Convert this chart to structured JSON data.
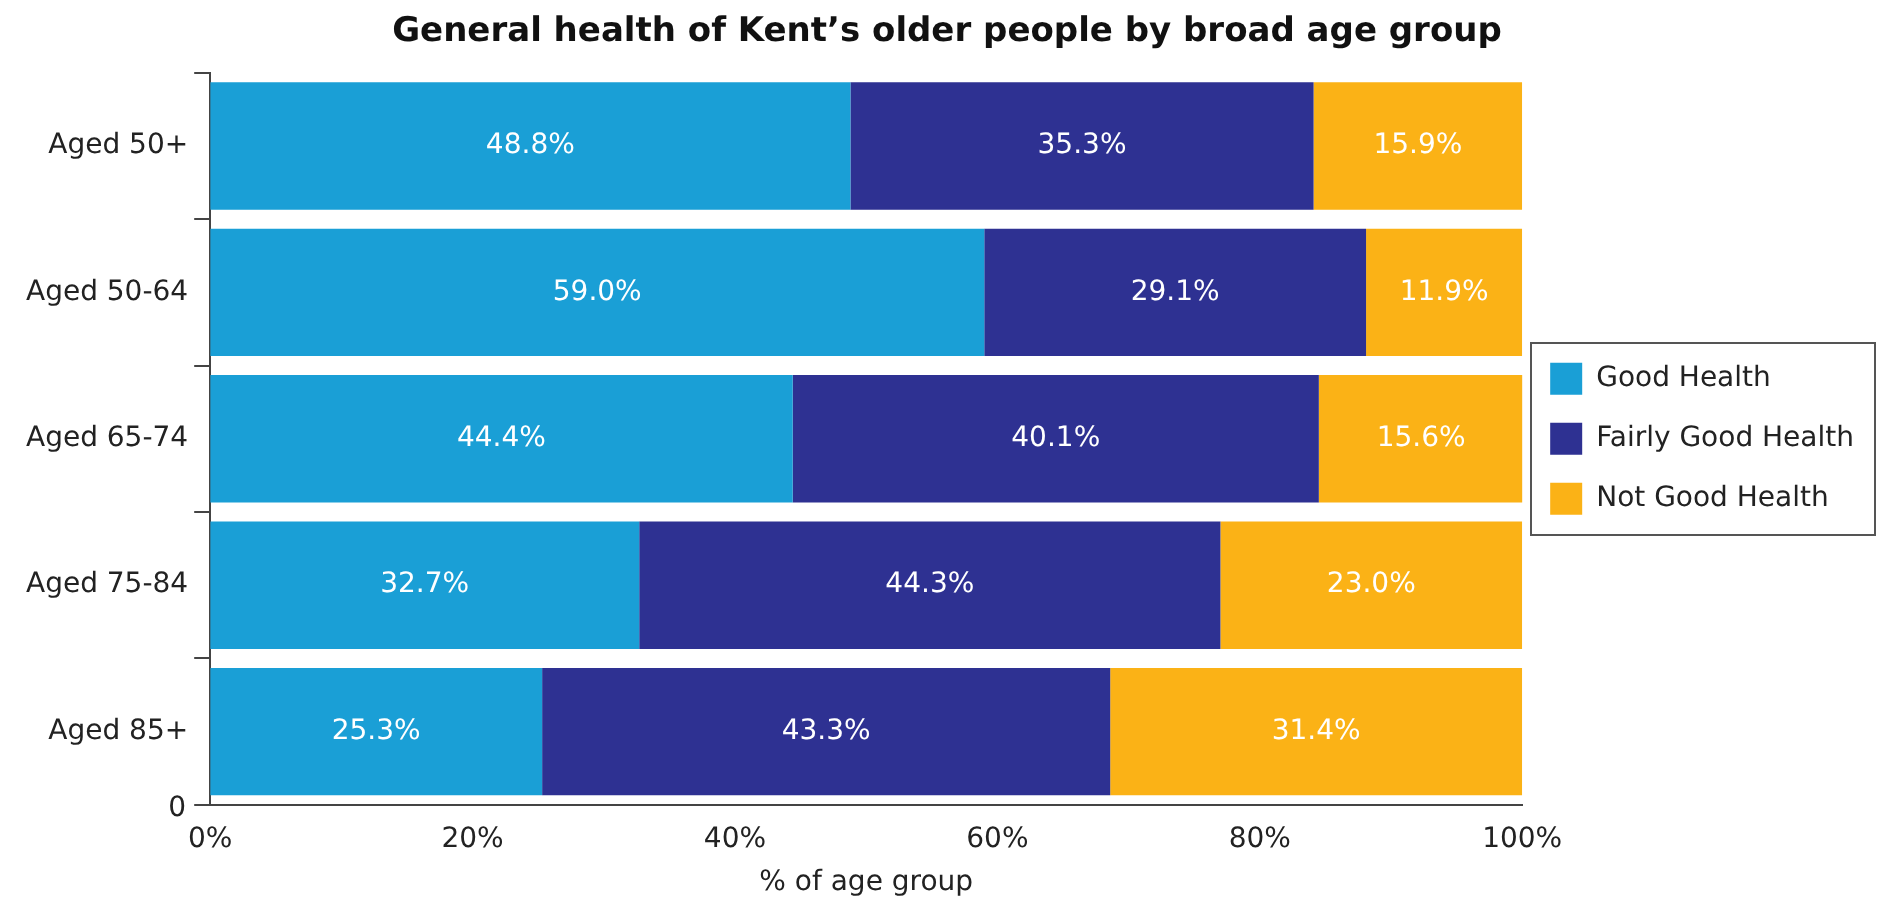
{
  "chart_data": {
    "type": "bar",
    "orientation": "horizontal",
    "stacked": true,
    "title": "General health of Kent’s older people by broad age group",
    "xlabel": "% of age group",
    "categories": [
      "Aged 50+",
      "Aged 50-64",
      "Aged 65-74",
      "Aged 75-84",
      "Aged 85+"
    ],
    "series": [
      {
        "name": "Good Health",
        "color": "#1a9fd6",
        "values": [
          48.8,
          59.0,
          44.4,
          32.7,
          25.3
        ],
        "value_labels": [
          "48.8%",
          "59.0%",
          "44.4%",
          "32.7%",
          "25.3%"
        ]
      },
      {
        "name": "Fairly Good Health",
        "color": "#2e3192",
        "values": [
          35.3,
          29.1,
          40.1,
          44.3,
          43.3
        ],
        "value_labels": [
          "35.3%",
          "29.1%",
          "40.1%",
          "44.3%",
          "43.3%"
        ]
      },
      {
        "name": "Not Good Health",
        "color": "#fbb216",
        "values": [
          15.9,
          11.9,
          15.6,
          23.0,
          31.4
        ],
        "value_labels": [
          "15.9%",
          "11.9%",
          "15.6%",
          "23.0%",
          "31.4%"
        ]
      }
    ],
    "xlim": [
      0,
      100
    ],
    "xticks": [
      {
        "value": 0,
        "label": "0%"
      },
      {
        "value": 20,
        "label": "20%"
      },
      {
        "value": 40,
        "label": "40%"
      },
      {
        "value": 60,
        "label": "60%"
      },
      {
        "value": 80,
        "label": "80%"
      },
      {
        "value": 100,
        "label": "100%"
      }
    ],
    "grid": false,
    "legend": "right",
    "annotations": [
      "0"
    ]
  }
}
